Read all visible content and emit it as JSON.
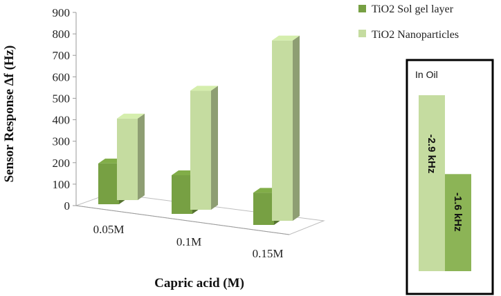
{
  "chart_data": [
    {
      "type": "bar",
      "categories": [
        "0.05M",
        "0.1M",
        "0.15M"
      ],
      "series": [
        {
          "name": "TiO2 Sol gel layer",
          "values": [
            190,
            180,
            150
          ],
          "color": "#77a043"
        },
        {
          "name": "TiO2 Nanoparticles",
          "values": [
            380,
            555,
            840
          ],
          "color": "#c5dca0"
        }
      ],
      "xlabel": "Capric acid (M)",
      "ylabel": "Sensor Response ∆f (Hz)",
      "ylim": [
        0,
        900
      ],
      "yticks": [
        "0",
        "100",
        "200",
        "300",
        "400",
        "500",
        "600",
        "700",
        "800",
        "900"
      ],
      "legend_position": "top-right",
      "grid": false,
      "style": "3d"
    },
    {
      "type": "bar",
      "title": "In Oil",
      "bars": [
        {
          "label": "-2.9 kHz",
          "value": 2.9,
          "color": "#c5dca0"
        },
        {
          "label": "-1.6 kHz",
          "value": 1.6,
          "color": "#8cb456"
        }
      ],
      "value_scale_max": 2.9
    }
  ]
}
